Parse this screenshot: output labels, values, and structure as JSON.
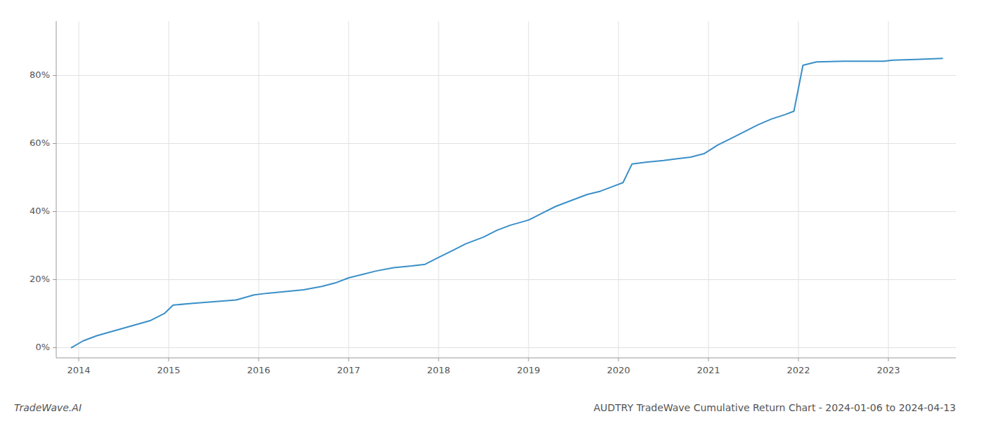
{
  "chart_data": {
    "type": "line",
    "title": "AUDTRY TradeWave Cumulative Return Chart - 2024-01-06 to 2024-04-13",
    "annotations": [
      "TradeWave.AI"
    ],
    "color": "#3a8fc8",
    "x": [
      2013.92,
      2014.05,
      2014.2,
      2014.4,
      2014.6,
      2014.8,
      2014.95,
      2015.05,
      2015.25,
      2015.5,
      2015.75,
      2015.95,
      2016.1,
      2016.3,
      2016.5,
      2016.7,
      2016.85,
      2017.0,
      2017.15,
      2017.3,
      2017.5,
      2017.7,
      2017.85,
      2018.0,
      2018.15,
      2018.3,
      2018.5,
      2018.65,
      2018.8,
      2019.0,
      2019.15,
      2019.3,
      2019.5,
      2019.65,
      2019.8,
      2019.95,
      2020.05,
      2020.15,
      2020.3,
      2020.5,
      2020.65,
      2020.8,
      2020.95,
      2021.1,
      2021.25,
      2021.4,
      2021.55,
      2021.7,
      2021.85,
      2021.95,
      2022.05,
      2022.2,
      2022.5,
      2022.75,
      2022.95,
      2023.05,
      2023.3,
      2023.6
    ],
    "values": [
      0.0,
      0.02,
      0.035,
      0.05,
      0.065,
      0.08,
      0.1,
      0.125,
      0.13,
      0.135,
      0.14,
      0.155,
      0.16,
      0.165,
      0.17,
      0.18,
      0.19,
      0.205,
      0.215,
      0.225,
      0.235,
      0.24,
      0.245,
      0.265,
      0.285,
      0.305,
      0.325,
      0.345,
      0.36,
      0.375,
      0.395,
      0.415,
      0.435,
      0.45,
      0.46,
      0.475,
      0.485,
      0.54,
      0.545,
      0.55,
      0.555,
      0.56,
      0.57,
      0.595,
      0.615,
      0.635,
      0.655,
      0.672,
      0.685,
      0.695,
      0.83,
      0.84,
      0.842,
      0.842,
      0.842,
      0.845,
      0.847,
      0.85
    ],
    "xlim": [
      2013.75,
      2023.75
    ],
    "xticks": [
      2014,
      2015,
      2016,
      2017,
      2018,
      2019,
      2020,
      2021,
      2022,
      2023
    ],
    "ylim": [
      -0.03,
      0.96
    ],
    "yticks": [
      {
        "value": 0.0,
        "label": "0%"
      },
      {
        "value": 0.2,
        "label": "20%"
      },
      {
        "value": 0.4,
        "label": "40%"
      },
      {
        "value": 0.6,
        "label": "60%"
      },
      {
        "value": 0.8,
        "label": "80%"
      }
    ],
    "grid": true
  }
}
